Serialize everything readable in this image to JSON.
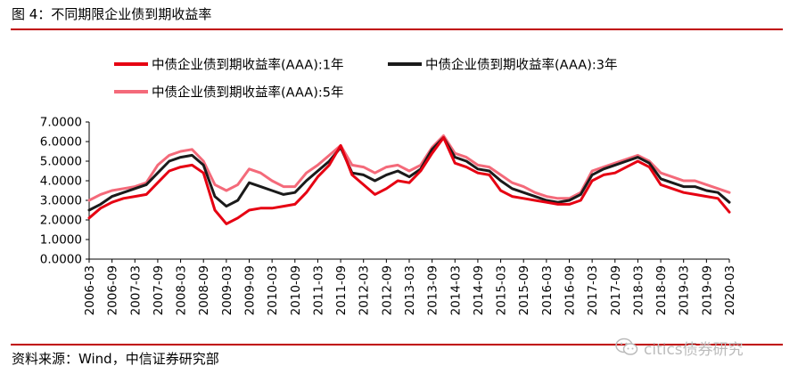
{
  "figure": {
    "title": "图 4：不同期限企业债到期收益率",
    "source": "资料来源：Wind，中信证券研究部",
    "watermark": "citics债券研究",
    "watermark_icon": "wechat-icon",
    "rule_color": "#c00000"
  },
  "chart_data": {
    "type": "line",
    "title": "",
    "xlabel": "",
    "ylabel": "",
    "ylim": [
      0,
      7
    ],
    "yticks": [
      "0.0000",
      "1.0000",
      "2.0000",
      "3.0000",
      "4.0000",
      "5.0000",
      "6.0000",
      "7.0000"
    ],
    "xticks": [
      "2006-03",
      "2006-09",
      "2007-03",
      "2007-09",
      "2008-03",
      "2008-09",
      "2009-03",
      "2009-09",
      "2010-03",
      "2010-09",
      "2011-03",
      "2011-09",
      "2012-03",
      "2012-09",
      "2013-03",
      "2013-09",
      "2014-03",
      "2014-09",
      "2015-03",
      "2015-09",
      "2016-03",
      "2016-09",
      "2017-03",
      "2017-09",
      "2018-03",
      "2018-09",
      "2019-03",
      "2019-09",
      "2020-03"
    ],
    "grid": false,
    "legend_position": "top",
    "x": [
      "2006-03",
      "2006-06",
      "2006-09",
      "2006-12",
      "2007-03",
      "2007-06",
      "2007-09",
      "2007-12",
      "2008-03",
      "2008-06",
      "2008-09",
      "2008-12",
      "2009-03",
      "2009-06",
      "2009-09",
      "2009-12",
      "2010-03",
      "2010-06",
      "2010-09",
      "2010-12",
      "2011-03",
      "2011-06",
      "2011-09",
      "2011-12",
      "2012-03",
      "2012-06",
      "2012-09",
      "2012-12",
      "2013-03",
      "2013-06",
      "2013-09",
      "2013-12",
      "2014-03",
      "2014-06",
      "2014-09",
      "2014-12",
      "2015-03",
      "2015-06",
      "2015-09",
      "2015-12",
      "2016-03",
      "2016-06",
      "2016-09",
      "2016-12",
      "2017-03",
      "2017-06",
      "2017-09",
      "2017-12",
      "2018-03",
      "2018-06",
      "2018-09",
      "2018-12",
      "2019-03",
      "2019-06",
      "2019-09",
      "2019-12",
      "2020-03"
    ],
    "series": [
      {
        "name": "中债企业债到期收益率(AAA):1年",
        "color": "#e60012",
        "width": 3,
        "values": [
          2.1,
          2.6,
          2.9,
          3.1,
          3.2,
          3.3,
          3.9,
          4.5,
          4.7,
          4.8,
          4.4,
          2.5,
          1.8,
          2.1,
          2.5,
          2.6,
          2.6,
          2.7,
          2.8,
          3.4,
          4.2,
          4.8,
          5.8,
          4.3,
          3.8,
          3.3,
          3.6,
          4.0,
          3.9,
          4.5,
          5.4,
          6.2,
          4.9,
          4.7,
          4.4,
          4.3,
          3.5,
          3.2,
          3.1,
          3.0,
          2.9,
          2.8,
          2.8,
          3.0,
          4.0,
          4.3,
          4.4,
          4.7,
          5.0,
          4.7,
          3.8,
          3.6,
          3.4,
          3.3,
          3.2,
          3.1,
          2.4
        ]
      },
      {
        "name": "中债企业债到期收益率(AAA):3年",
        "color": "#1a1a1a",
        "width": 3,
        "values": [
          2.5,
          2.8,
          3.2,
          3.4,
          3.6,
          3.8,
          4.4,
          5.0,
          5.2,
          5.3,
          4.8,
          3.2,
          2.7,
          3.0,
          3.9,
          3.7,
          3.5,
          3.3,
          3.4,
          4.0,
          4.5,
          5.0,
          5.7,
          4.4,
          4.3,
          4.0,
          4.3,
          4.5,
          4.2,
          4.6,
          5.6,
          6.2,
          5.2,
          5.0,
          4.6,
          4.5,
          4.0,
          3.6,
          3.4,
          3.2,
          3.0,
          2.9,
          3.0,
          3.3,
          4.3,
          4.6,
          4.8,
          5.0,
          5.2,
          4.9,
          4.1,
          3.9,
          3.7,
          3.7,
          3.5,
          3.4,
          2.9
        ]
      },
      {
        "name": "中债企业债到期收益率(AAA):5年",
        "color": "#f46a7a",
        "width": 3,
        "values": [
          3.0,
          3.3,
          3.5,
          3.6,
          3.7,
          3.9,
          4.8,
          5.3,
          5.5,
          5.6,
          5.0,
          3.8,
          3.5,
          3.8,
          4.6,
          4.4,
          4.0,
          3.7,
          3.7,
          4.4,
          4.8,
          5.3,
          5.8,
          4.8,
          4.7,
          4.4,
          4.7,
          4.8,
          4.5,
          4.8,
          5.7,
          6.3,
          5.4,
          5.2,
          4.8,
          4.7,
          4.3,
          3.9,
          3.7,
          3.4,
          3.2,
          3.1,
          3.1,
          3.4,
          4.5,
          4.7,
          4.9,
          5.1,
          5.3,
          5.0,
          4.4,
          4.2,
          4.0,
          4.0,
          3.8,
          3.6,
          3.4
        ]
      }
    ]
  }
}
